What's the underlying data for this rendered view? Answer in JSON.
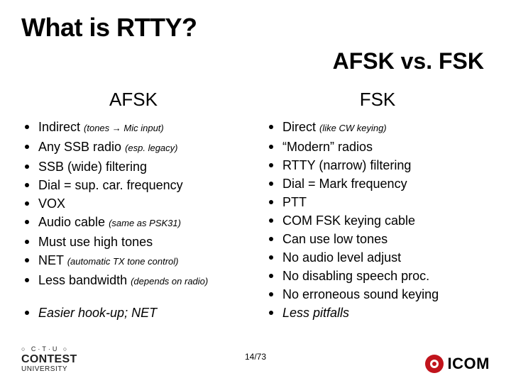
{
  "title": "What is RTTY?",
  "subtitle": "AFSK vs. FSK",
  "left": {
    "heading": "AFSK",
    "items": [
      {
        "main": "Indirect ",
        "note": "(tones → Mic input)"
      },
      {
        "main": "Any SSB radio ",
        "note": "(esp. legacy)"
      },
      {
        "main": "SSB (wide) filtering"
      },
      {
        "main": "Dial = sup. car. frequency"
      },
      {
        "main": "VOX"
      },
      {
        "main": "Audio cable ",
        "note": "(same as PSK31)"
      },
      {
        "main": "Must use high tones"
      },
      {
        "main": "NET ",
        "note": "(automatic TX tone control)"
      },
      {
        "main": "Less bandwidth ",
        "note": "(depends on radio)"
      },
      {
        "main": "Easier hook-up; NET",
        "italic": true,
        "gap": true
      }
    ]
  },
  "right": {
    "heading": "FSK",
    "items": [
      {
        "main": "Direct ",
        "note": "(like CW keying)"
      },
      {
        "main": "“Modern” radios"
      },
      {
        "main": "RTTY (narrow) filtering"
      },
      {
        "main": "Dial = Mark frequency"
      },
      {
        "main": "PTT"
      },
      {
        "main": "COM FSK keying cable"
      },
      {
        "main": "Can use low tones"
      },
      {
        "main": "No audio level adjust"
      },
      {
        "main": "No disabling speech proc."
      },
      {
        "main": "No erroneous sound keying"
      },
      {
        "main": "Less pitfalls",
        "italic": true
      }
    ]
  },
  "footer": {
    "page": "14/73",
    "ctu": {
      "dots": "○ C·T·U ○",
      "big": "CONTEST",
      "sub": "UNIVERSITY"
    },
    "icom": "ICOM"
  },
  "colors": {
    "bg": "#ffffff",
    "text": "#000000",
    "bullet": "#000000",
    "icom_red": "#c1141c"
  }
}
